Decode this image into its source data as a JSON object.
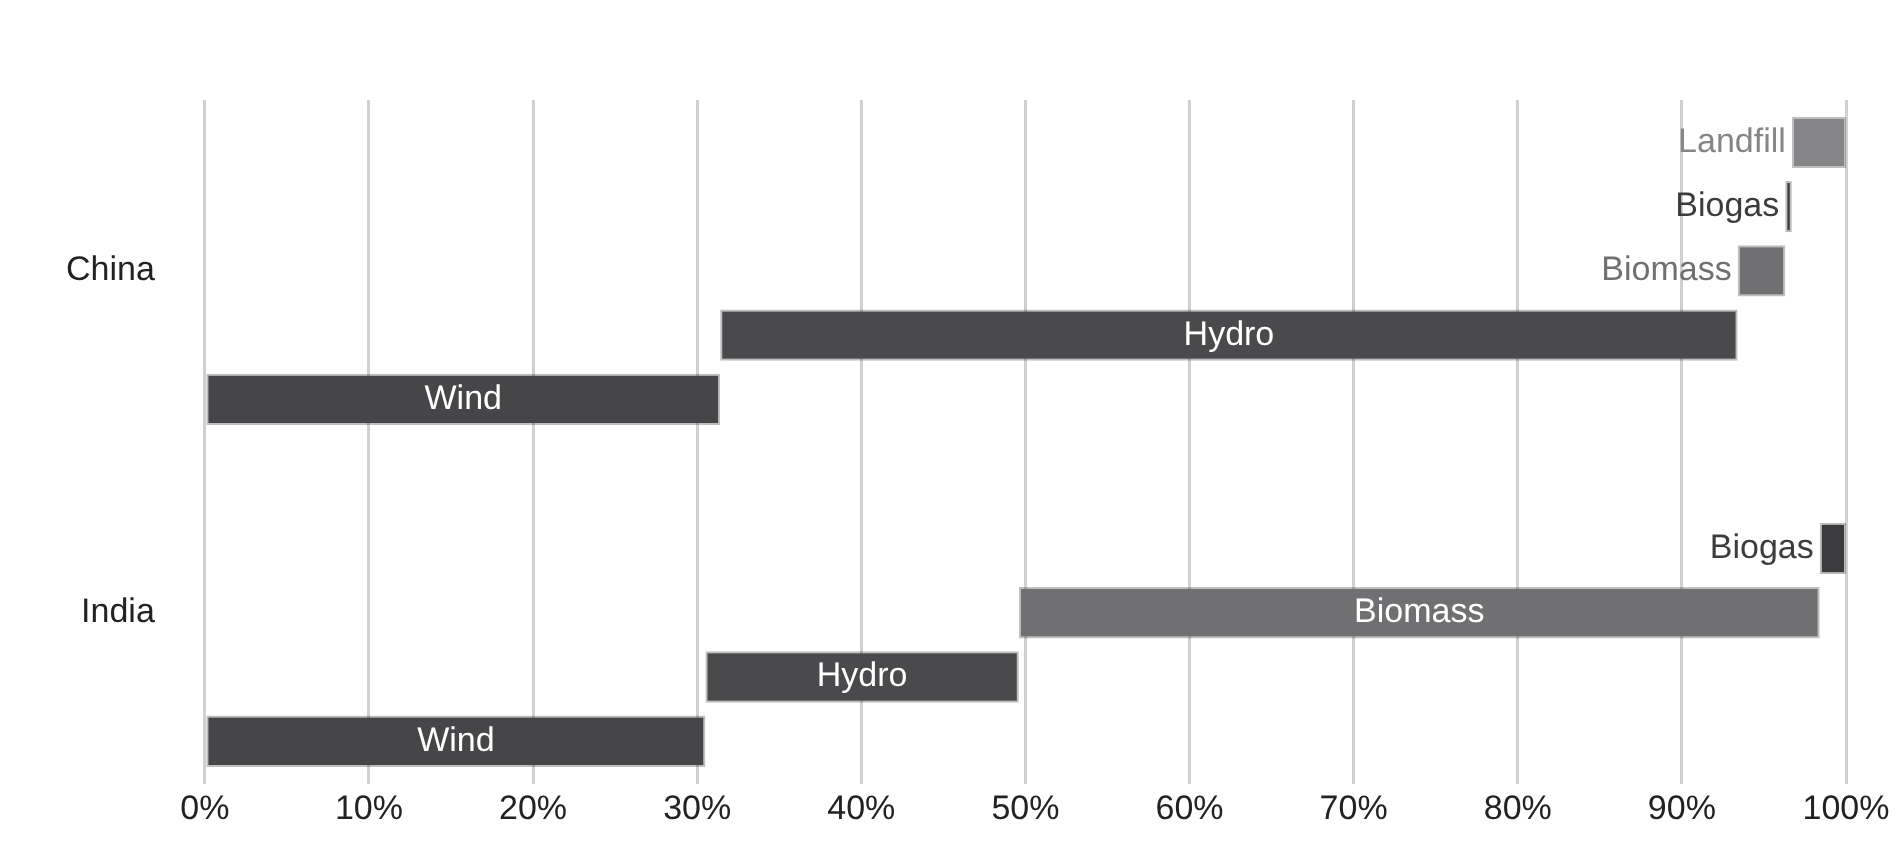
{
  "chart_data": {
    "type": "bar",
    "orientation": "horizontal",
    "categories": [
      "China",
      "India"
    ],
    "series": [
      {
        "name": "Landfill",
        "color": "#868688",
        "base": [
          96.7,
          null
        ],
        "values": [
          3.3,
          null
        ]
      },
      {
        "name": "Biogas",
        "color": "#3c3c3e",
        "base": [
          96.3,
          98.4
        ],
        "values": [
          0.4,
          1.6
        ]
      },
      {
        "name": "Biomass",
        "color": "#707072",
        "base": [
          93.4,
          49.6
        ],
        "values": [
          2.9,
          48.8
        ]
      },
      {
        "name": "Hydro",
        "color": "#4a4a4c",
        "base": [
          31.4,
          30.5
        ],
        "values": [
          62,
          19.1
        ]
      },
      {
        "name": "Wind",
        "color": "#464648",
        "base": [
          0,
          0
        ],
        "values": [
          31.4,
          30.5
        ]
      }
    ],
    "xlim": [
      0,
      100
    ],
    "xticks": [
      {
        "value": 0,
        "label": "0%"
      },
      {
        "value": 10,
        "label": "10%"
      },
      {
        "value": 20,
        "label": "20%"
      },
      {
        "value": 30,
        "label": "30%"
      },
      {
        "value": 40,
        "label": "40%"
      },
      {
        "value": 50,
        "label": "50%"
      },
      {
        "value": 60,
        "label": "60%"
      },
      {
        "value": 70,
        "label": "70%"
      },
      {
        "value": 80,
        "label": "80%"
      },
      {
        "value": 90,
        "label": "90%"
      },
      {
        "value": 100,
        "label": "100%"
      }
    ],
    "grid": "x",
    "legend": false
  }
}
